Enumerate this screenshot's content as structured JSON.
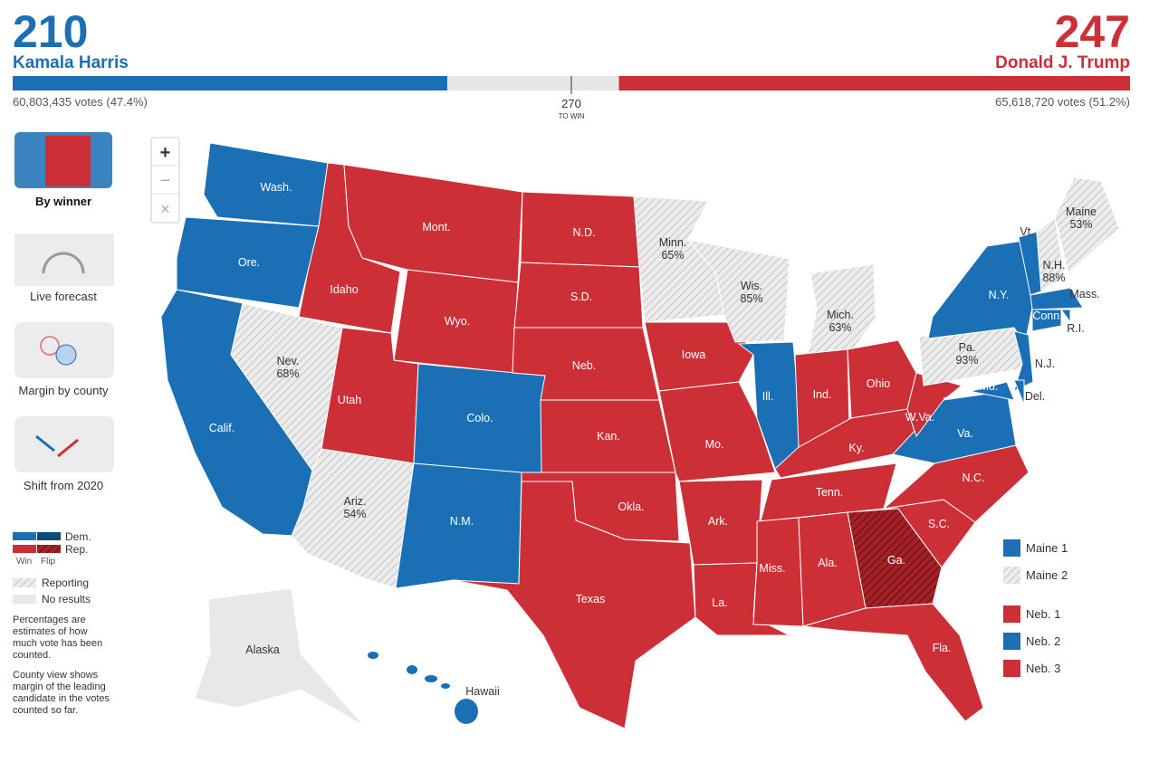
{
  "header": {
    "dem": {
      "electoral_votes": 210,
      "candidate": "Kamala Harris",
      "votes": "60,803,435 votes (47.4%)"
    },
    "rep": {
      "electoral_votes": 247,
      "candidate": "Donald J. Trump",
      "votes": "65,618,720 votes (51.2%)"
    },
    "threshold": {
      "value": 270,
      "label": "TO WIN"
    }
  },
  "views": [
    "By winner",
    "Live forecast",
    "Margin by county",
    "Shift from 2020"
  ],
  "zoom_controls": [
    "+",
    "−",
    "×"
  ],
  "legend": {
    "dem": "Dem.",
    "rep": "Rep.",
    "win": "Win",
    "flip": "Flip",
    "reporting": "Reporting",
    "no_results": "No results"
  },
  "notes": [
    "Percentages are estimates of how much vote has been counted.",
    "County view shows margin of the leading candidate in the votes counted so far."
  ],
  "districts": [
    "Maine 1",
    "Maine 2",
    "Neb. 1",
    "Neb. 2",
    "Neb. 3"
  ],
  "states": [
    {
      "label": "Wash."
    },
    {
      "label": "Ore."
    },
    {
      "label": "Calif."
    },
    {
      "label": "Nev.",
      "reported": "68%"
    },
    {
      "label": "Idaho"
    },
    {
      "label": "Mont."
    },
    {
      "label": "Wyo."
    },
    {
      "label": "Utah"
    },
    {
      "label": "Ariz.",
      "reported": "54%"
    },
    {
      "label": "Colo."
    },
    {
      "label": "N.M."
    },
    {
      "label": "N.D."
    },
    {
      "label": "S.D."
    },
    {
      "label": "Neb."
    },
    {
      "label": "Kan."
    },
    {
      "label": "Okla."
    },
    {
      "label": "Texas"
    },
    {
      "label": "Minn.",
      "reported": "65%"
    },
    {
      "label": "Iowa"
    },
    {
      "label": "Mo."
    },
    {
      "label": "Ark."
    },
    {
      "label": "La."
    },
    {
      "label": "Wis.",
      "reported": "85%"
    },
    {
      "label": "Ill."
    },
    {
      "label": "Mich.",
      "reported": "63%"
    },
    {
      "label": "Ind."
    },
    {
      "label": "Ohio"
    },
    {
      "label": "Ky."
    },
    {
      "label": "Tenn."
    },
    {
      "label": "Miss."
    },
    {
      "label": "Ala."
    },
    {
      "label": "Ga."
    },
    {
      "label": "Fla."
    },
    {
      "label": "S.C."
    },
    {
      "label": "N.C."
    },
    {
      "label": "Va."
    },
    {
      "label": "W.Va."
    },
    {
      "label": "Pa.",
      "reported": "93%"
    },
    {
      "label": "N.Y."
    },
    {
      "label": "N.J."
    },
    {
      "label": "Md."
    },
    {
      "label": "Del."
    },
    {
      "label": "Vt."
    },
    {
      "label": "N.H.",
      "reported": "88%"
    },
    {
      "label": "Maine",
      "reported": "53%"
    },
    {
      "label": "Mass."
    },
    {
      "label": "Conn."
    },
    {
      "label": "R.I."
    },
    {
      "label": "Alaska"
    },
    {
      "label": "Hawaii"
    }
  ]
}
